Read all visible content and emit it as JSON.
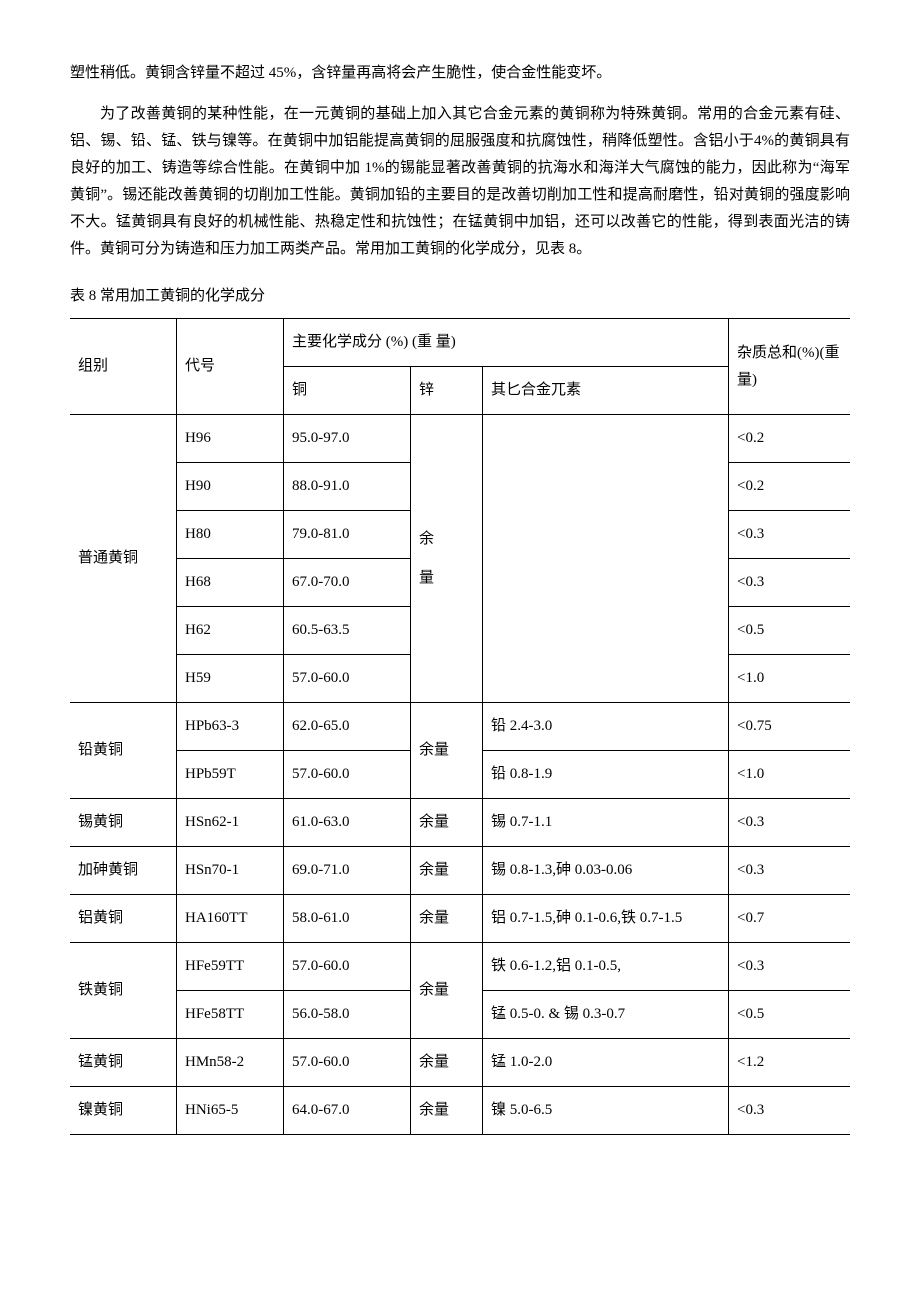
{
  "paragraphs": {
    "p1": "塑性稍低。黄铜含锌量不超过 45%，含锌量再高将会产生脆性，使合金性能变坏。",
    "p2": "为了改善黄铜的某种性能，在一元黄铜的基础上加入其它合金元素的黄铜称为特殊黄铜。常用的合金元素有硅、铝、锡、铅、锰、铁与镍等。在黄铜中加铝能提高黄铜的屈服强度和抗腐蚀性，稍降低塑性。含铝小于4%的黄铜具有良好的加工、铸造等综合性能。在黄铜中加 1%的锡能显著改善黄铜的抗海水和海洋大气腐蚀的能力，因此称为“海军黄铜”。锡还能改善黄铜的切削加工性能。黄铜加铅的主要目的是改善切削加工性和提高耐磨性，铅对黄铜的强度影响不大。锰黄铜具有良好的机械性能、热稳定性和抗蚀性；在锰黄铜中加铝，还可以改善它的性能，得到表面光洁的铸件。黄铜可分为铸造和压力加工两类产品。常用加工黄铜的化学成分，见表 8。"
  },
  "table": {
    "caption": "表 8 常用加工黄铜的化学成分",
    "headers": {
      "group": "组别",
      "code": "代号",
      "main": "主要化学成分 (%) (重 量)",
      "cu": "铜",
      "zn": "锌",
      "other": "其匕合金兀素",
      "impurity": "杂质总和(%)(重量)"
    },
    "groups": [
      {
        "name": "普通黄铜",
        "zn": "余\n量",
        "rows": [
          {
            "code": "H96",
            "cu": "95.0-97.0",
            "other": "",
            "imp": "<0.2"
          },
          {
            "code": "H90",
            "cu": "88.0-91.0",
            "other": "",
            "imp": "<0.2"
          },
          {
            "code": "H80",
            "cu": "79.0-81.0",
            "other": "",
            "imp": "<0.3"
          },
          {
            "code": "H68",
            "cu": "67.0-70.0",
            "other": "",
            "imp": "<0.3"
          },
          {
            "code": "H62",
            "cu": "60.5-63.5",
            "other": "",
            "imp": "<0.5"
          },
          {
            "code": "H59",
            "cu": "57.0-60.0",
            "other": "",
            "imp": "<1.0"
          }
        ]
      },
      {
        "name": "铅黄铜",
        "zn": "余量",
        "rows": [
          {
            "code": "HPb63-3",
            "cu": "62.0-65.0",
            "other": "铅 2.4-3.0",
            "imp": "<0.75"
          },
          {
            "code": "HPb59T",
            "cu": "57.0-60.0",
            "other": "铅 0.8-1.9",
            "imp": "<1.0"
          }
        ]
      },
      {
        "name": "锡黄铜",
        "zn": "余量",
        "rows": [
          {
            "code": "HSn62-1",
            "cu": "61.0-63.0",
            "other": "锡 0.7-1.1",
            "imp": "<0.3"
          }
        ]
      },
      {
        "name": "加砷黄铜",
        "zn": "余量",
        "rows": [
          {
            "code": "HSn70-1",
            "cu": "69.0-71.0",
            "other": "锡 0.8-1.3,砷 0.03-0.06",
            "imp": "<0.3"
          }
        ]
      },
      {
        "name": "铝黄铜",
        "zn": "余量",
        "rows": [
          {
            "code": "HA160TT",
            "cu": "58.0-61.0",
            "other": "铝 0.7-1.5,砷 0.1-0.6,铁 0.7-1.5",
            "imp": "<0.7"
          }
        ]
      },
      {
        "name": "铁黄铜",
        "zn": "余量",
        "rows": [
          {
            "code": "HFe59TT",
            "cu": "57.0-60.0",
            "other": "铁 0.6-1.2,铝 0.1-0.5,",
            "imp": "<0.3"
          },
          {
            "code": "HFe58TT",
            "cu": "56.0-58.0",
            "other": "锰 0.5-0. & 锡 0.3-0.7",
            "imp": "<0.5"
          }
        ]
      },
      {
        "name": "锰黄铜",
        "zn": "余量",
        "rows": [
          {
            "code": "HMn58-2",
            "cu": "57.0-60.0",
            "other": "锰 1.0-2.0",
            "imp": "<1.2"
          }
        ]
      },
      {
        "name": "镍黄铜",
        "zn": "余量",
        "rows": [
          {
            "code": "HNi65-5",
            "cu": "64.0-67.0",
            "other": "镍 5.0-6.5",
            "imp": "<0.3"
          }
        ]
      }
    ]
  }
}
